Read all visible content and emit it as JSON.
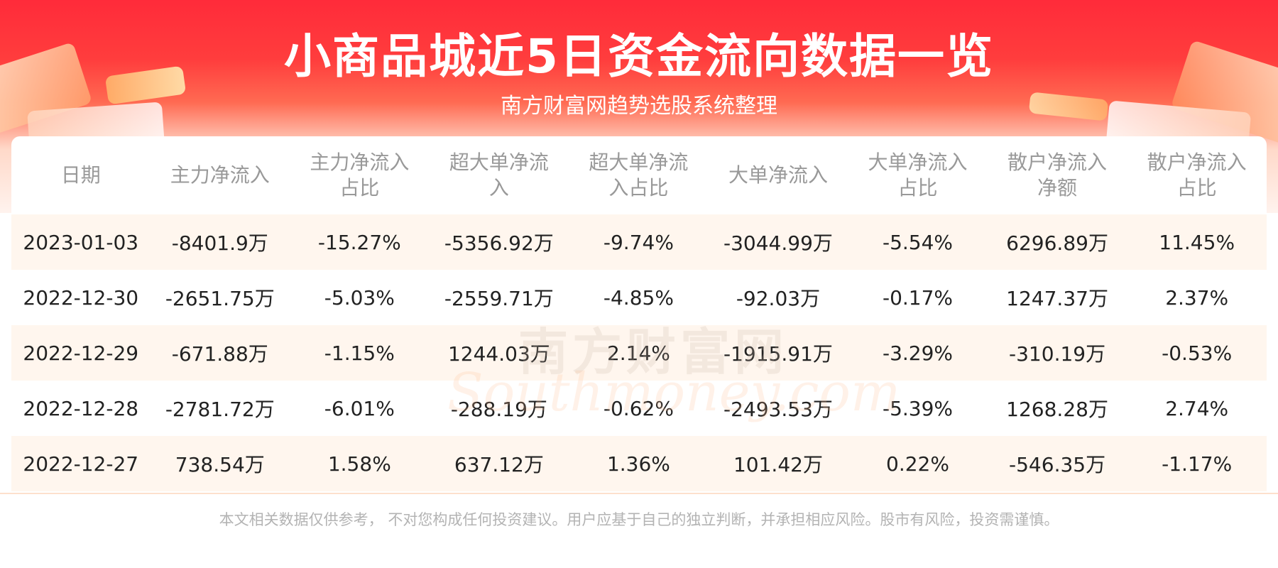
{
  "header": {
    "title": "小商品城近5日资金流向数据一览",
    "subtitle": "南方财富网趋势选股系统整理"
  },
  "table": {
    "columns": [
      "日期",
      "主力净流入",
      "主力净流入\n占比",
      "超大单净流\n入",
      "超大单净流\n入占比",
      "大单净流入",
      "大单净流入\n占比",
      "散户净流入\n净额",
      "散户净流入\n占比"
    ],
    "rows": [
      [
        "2023-01-03",
        "-8401.9万",
        "-15.27%",
        "-5356.92万",
        "-9.74%",
        "-3044.99万",
        "-5.54%",
        "6296.89万",
        "11.45%"
      ],
      [
        "2022-12-30",
        "-2651.75万",
        "-5.03%",
        "-2559.71万",
        "-4.85%",
        "-92.03万",
        "-0.17%",
        "1247.37万",
        "2.37%"
      ],
      [
        "2022-12-29",
        "-671.88万",
        "-1.15%",
        "1244.03万",
        "2.14%",
        "-1915.91万",
        "-3.29%",
        "-310.19万",
        "-0.53%"
      ],
      [
        "2022-12-28",
        "-2781.72万",
        "-6.01%",
        "-288.19万",
        "-0.62%",
        "-2493.53万",
        "-5.39%",
        "1268.28万",
        "2.74%"
      ],
      [
        "2022-12-27",
        "738.54万",
        "1.58%",
        "637.12万",
        "1.36%",
        "101.42万",
        "0.22%",
        "-546.35万",
        "-1.17%"
      ]
    ]
  },
  "watermark": {
    "cn": "南方财富网",
    "en": "Southmoney.com"
  },
  "footer": {
    "disclaimer": "本文相关数据仅供参考， 不对您构成任何投资建议。用户应基于自己的独立判断，并承担相应风险。股市有风险，投资需谨慎。"
  },
  "colors": {
    "header_red": "#ff2b3a",
    "row_alt": "#fff6ee",
    "header_text": "#999999"
  }
}
